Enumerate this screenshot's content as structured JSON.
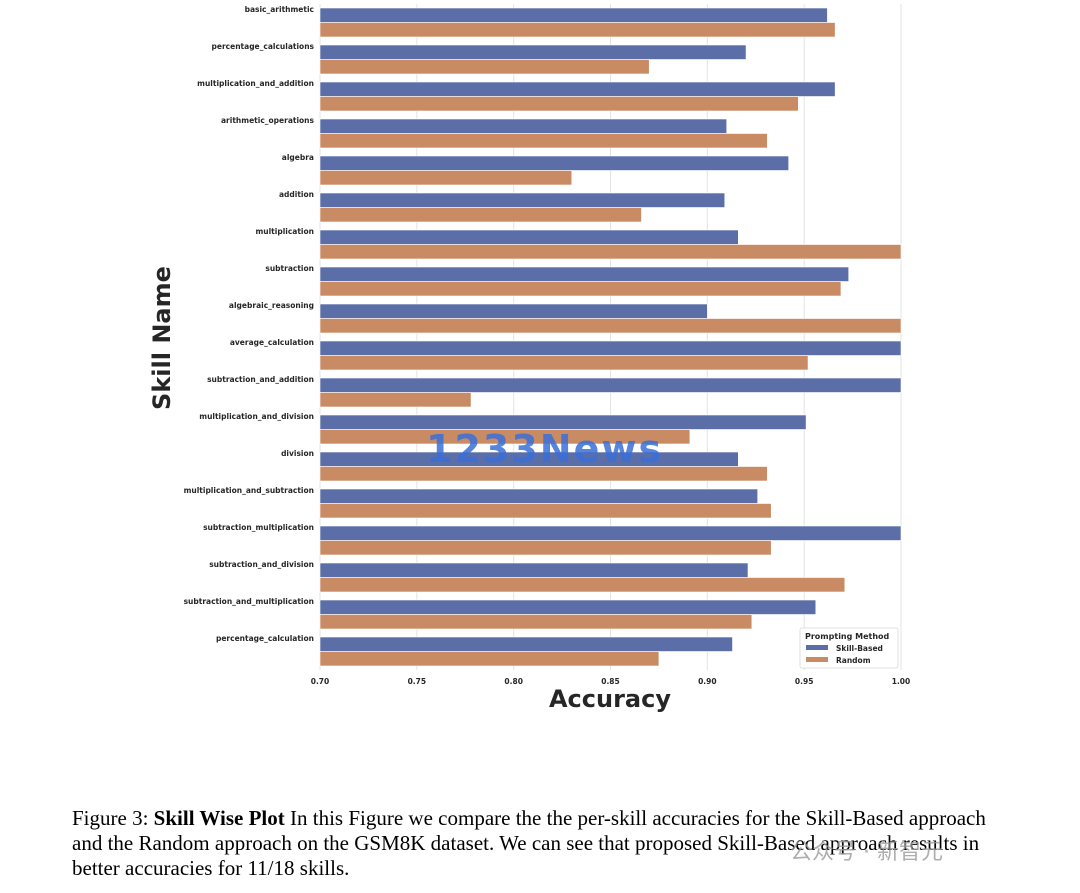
{
  "chart_data": {
    "type": "bar",
    "orientation": "horizontal",
    "xlabel": "Accuracy",
    "ylabel": "Skill Name",
    "xlim": [
      0.7,
      1.0
    ],
    "xticks": [
      "0.70",
      "0.75",
      "0.80",
      "0.85",
      "0.90",
      "0.95",
      "1.00"
    ],
    "grid": "vertical",
    "legend": {
      "title": "Prompting Method",
      "placement": "bottom-right"
    },
    "categories": [
      "basic_arithmetic",
      "percentage_calculations",
      "multiplication_and_addition",
      "arithmetic_operations",
      "algebra",
      "addition",
      "multiplication",
      "subtraction",
      "algebraic_reasoning",
      "average_calculation",
      "subtraction_and_addition",
      "multiplication_and_division",
      "division",
      "multiplication_and_subtraction",
      "subtraction_multiplication",
      "subtraction_and_division",
      "subtraction_and_multiplication",
      "percentage_calculation"
    ],
    "series": [
      {
        "name": "Skill-Based",
        "color": "#5b6ea8",
        "values": [
          0.962,
          0.92,
          0.966,
          0.91,
          0.942,
          0.909,
          0.916,
          0.973,
          0.9,
          1.0,
          1.0,
          0.951,
          0.916,
          0.926,
          1.0,
          0.921,
          0.956,
          0.913
        ]
      },
      {
        "name": "Random",
        "color": "#c98b64",
        "values": [
          0.966,
          0.87,
          0.947,
          0.931,
          0.83,
          0.866,
          1.0,
          0.969,
          1.0,
          0.952,
          0.778,
          0.891,
          0.931,
          0.933,
          0.933,
          0.971,
          0.923,
          0.875
        ]
      }
    ]
  },
  "watermark": "1233News",
  "caption": {
    "prefix": "Figure 3: ",
    "bold": "Skill Wise Plot",
    "text": " In this Figure we compare the the per-skill accuracies for the Skill-Based approach and the Random approach on the GSM8K dataset. We can see that proposed Skill-Based approach results in better accuracies for 11/18 skills."
  },
  "corner_watermark": "公众号 · 新智元"
}
